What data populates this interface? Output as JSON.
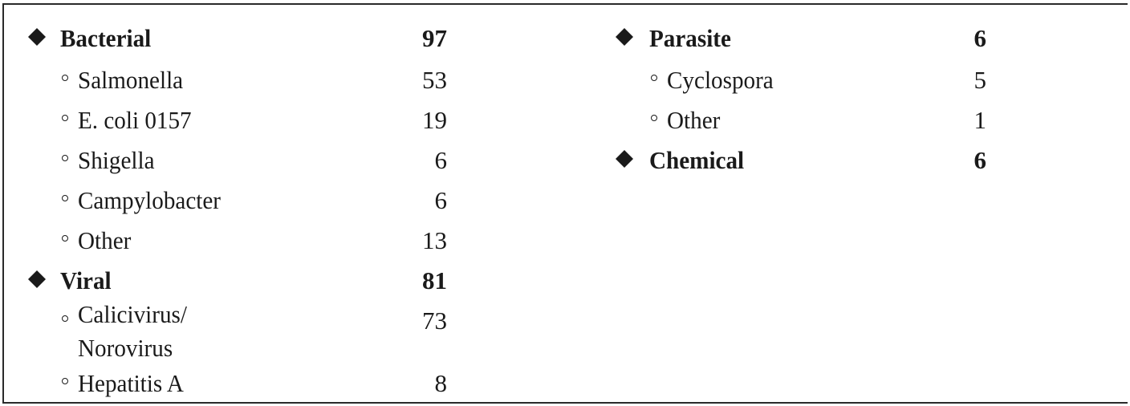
{
  "left_column": [
    {
      "type": "category",
      "label": "Bacterial",
      "value": "97"
    },
    {
      "type": "sub",
      "label": "Salmonella",
      "value": "53"
    },
    {
      "type": "sub",
      "label": "E. coli 0157",
      "value": "19"
    },
    {
      "type": "sub",
      "label": "Shigella",
      "value": "6"
    },
    {
      "type": "sub",
      "label": "Campylobacter",
      "value": "6"
    },
    {
      "type": "sub",
      "label": "Other",
      "value": "13"
    },
    {
      "type": "category",
      "label": "Viral",
      "value": "81"
    },
    {
      "type": "sub",
      "label_line1": "Calicivirus/",
      "label_line2": "Norovirus",
      "value": "73"
    },
    {
      "type": "sub",
      "label": "Hepatitis A",
      "value": "8"
    }
  ],
  "right_column": [
    {
      "type": "category",
      "label": "Parasite",
      "value": "6"
    },
    {
      "type": "sub",
      "label": "Cyclospora",
      "value": "5"
    },
    {
      "type": "sub",
      "label": "Other",
      "value": "1"
    },
    {
      "type": "category",
      "label": "Chemical",
      "value": "6"
    }
  ],
  "colors": {
    "text": "#1a1a1a",
    "border": "#2a2a2a",
    "background": "#ffffff"
  },
  "icons": {
    "category_marker": "diamond-bullet",
    "sub_marker": "open-circle-bullet"
  }
}
